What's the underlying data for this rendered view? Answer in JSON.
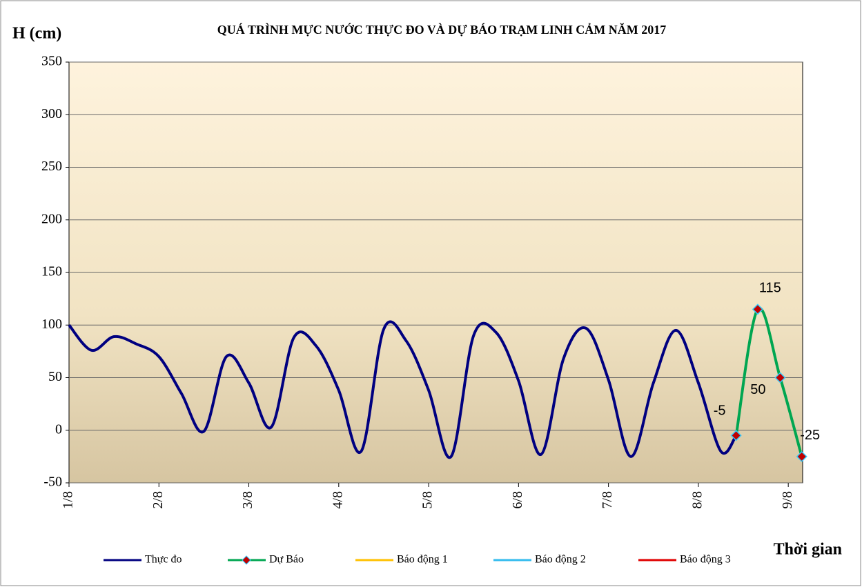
{
  "chart_data": {
    "type": "line",
    "title": "QUÁ TRÌNH  MỰC NƯỚC THỰC ĐO VÀ DỰ BÁO TRẠM  LINH  CẢM NĂM 2017",
    "y_label": "H (cm)",
    "x_label": "Thời gian",
    "xlim": [
      1,
      9.16
    ],
    "ylim": [
      -50,
      350
    ],
    "xticks": [
      {
        "value": 1,
        "label": "1/8"
      },
      {
        "value": 2,
        "label": "2/8"
      },
      {
        "value": 3,
        "label": "3/8"
      },
      {
        "value": 4,
        "label": "4/8"
      },
      {
        "value": 5,
        "label": "5/8"
      },
      {
        "value": 6,
        "label": "6/8"
      },
      {
        "value": 7,
        "label": "7/8"
      },
      {
        "value": 8,
        "label": "8/8"
      },
      {
        "value": 9,
        "label": "9/8"
      }
    ],
    "yticks": [
      -50,
      0,
      50,
      100,
      150,
      200,
      250,
      300,
      350
    ],
    "grid": true,
    "series": [
      {
        "name": "Thực đo",
        "color": "#000080",
        "x": [
          1,
          1.25,
          1.5,
          1.75,
          2,
          2.25,
          2.5,
          2.75,
          3,
          3.25,
          3.5,
          3.75,
          4,
          4.25,
          4.5,
          4.75,
          5,
          5.25,
          5.5,
          5.75,
          6,
          6.25,
          6.5,
          6.75,
          7,
          7.25,
          7.5,
          7.75,
          8,
          8.25,
          8.42
        ],
        "values": [
          100,
          76,
          89,
          82,
          70,
          35,
          -1,
          70,
          45,
          3,
          88,
          80,
          38,
          -20,
          96,
          85,
          38,
          -25,
          90,
          93,
          47,
          -23,
          68,
          97,
          48,
          -25,
          45,
          95,
          45,
          -20,
          -5
        ]
      },
      {
        "name": "Dự Báo",
        "color": "#00a651",
        "marker_color": "#c00000",
        "marker_edge": "#33ccff",
        "x": [
          8.42,
          8.66,
          8.91,
          9.15
        ],
        "values": [
          -5,
          115,
          50,
          -25
        ]
      },
      {
        "name": "Báo động 1",
        "color": "#ffc000",
        "x": [],
        "values": []
      },
      {
        "name": "Báo động 2",
        "color": "#33bbee",
        "x": [],
        "values": []
      },
      {
        "name": "Báo động 3",
        "color": "#e00000",
        "x": [],
        "values": []
      }
    ]
  }
}
